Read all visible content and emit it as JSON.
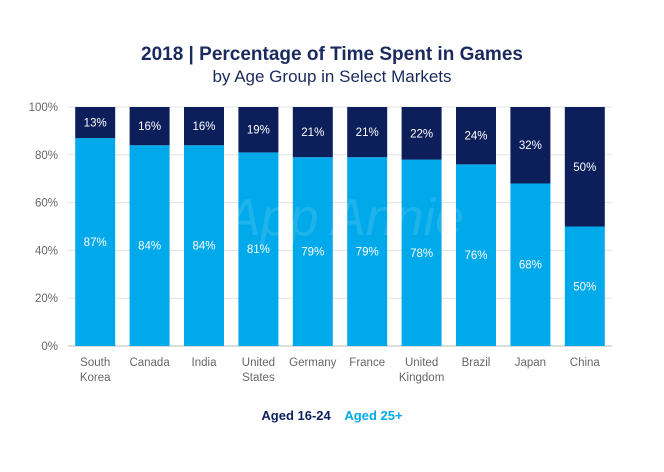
{
  "chart_data": {
    "type": "bar",
    "stacked": true,
    "title": "2018 | Percentage of Time Spent in Games",
    "subtitle": "by Age Group in Select Markets",
    "categories": [
      [
        "South",
        "Korea"
      ],
      [
        "Canada"
      ],
      [
        "India"
      ],
      [
        "United",
        "States"
      ],
      [
        "Germany"
      ],
      [
        "France"
      ],
      [
        "United",
        "Kingdom"
      ],
      [
        "Brazil"
      ],
      [
        "Japan"
      ],
      [
        "China"
      ]
    ],
    "series": [
      {
        "name": "Aged 25+",
        "color": "#00a9ea",
        "values": [
          87,
          84,
          84,
          81,
          79,
          79,
          78,
          76,
          68,
          50
        ]
      },
      {
        "name": "Aged 16-24",
        "color": "#0c1f5b",
        "values": [
          13,
          16,
          16,
          19,
          21,
          21,
          22,
          24,
          32,
          50
        ]
      }
    ],
    "yticks": [
      "0%",
      "20%",
      "40%",
      "60%",
      "80%",
      "100%"
    ],
    "ylim": [
      0,
      100
    ],
    "grid": true,
    "legend_position": "bottom"
  },
  "watermark": "App Annie"
}
